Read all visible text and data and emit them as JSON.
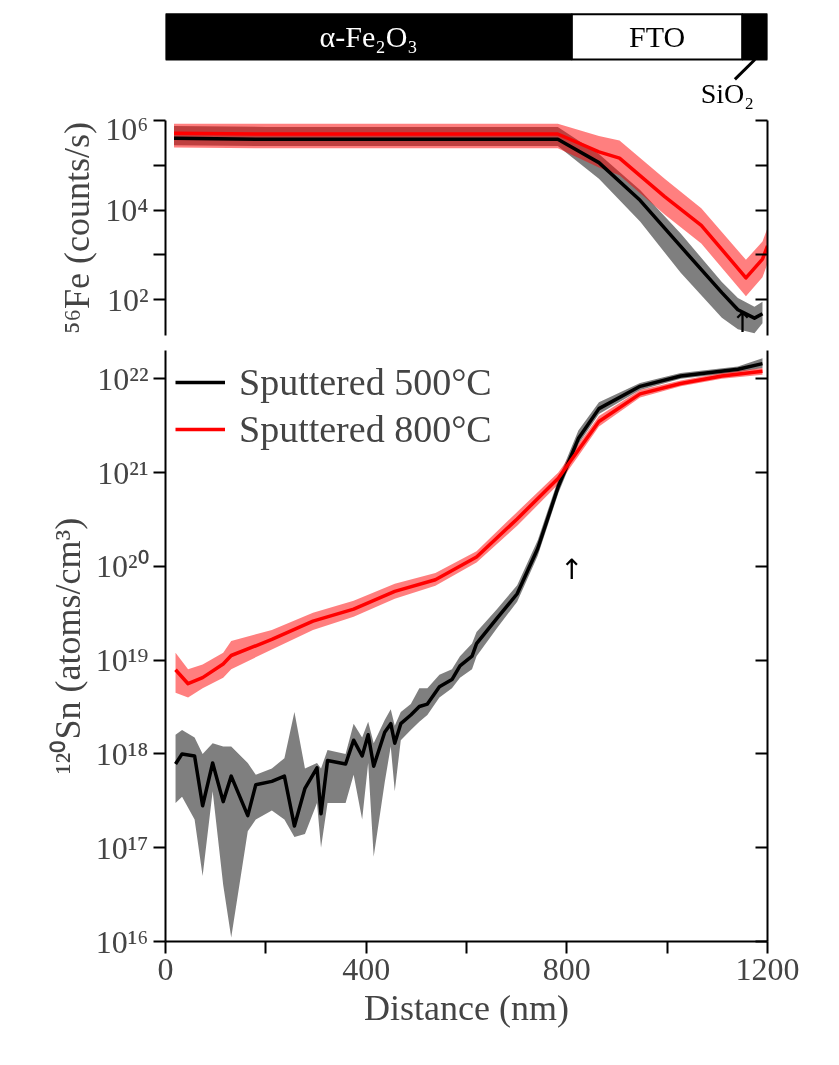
{
  "chart_data": [
    {
      "type": "bar",
      "orientation": "horizontal",
      "stacked": true,
      "categories": [
        null
      ],
      "xlim": [
        0,
        1200
      ],
      "tick_labels": false,
      "series": [
        {
          "name": "α-Fe₂O₃",
          "color": "#000000",
          "values": [
            810
          ]
        },
        {
          "name": "FTO",
          "color": "#ffffff",
          "values": [
            340
          ]
        },
        {
          "name": "SiO₂",
          "color": "#000000",
          "values": [
            50
          ]
        }
      ]
    },
    {
      "type": "line",
      "ylabel": "⁵⁶Fe (counts/s)",
      "log": "y",
      "xlim": [
        0,
        1200
      ],
      "ylim": [
        16,
        1000000
      ],
      "yticks": [
        {
          "value": 1000000,
          "label": "10⁶"
        },
        {
          "value": 100000,
          "label": null
        },
        {
          "value": 10000,
          "label": "10⁴"
        },
        {
          "value": 1000,
          "label": null
        },
        {
          "value": 100,
          "label": "10²"
        }
      ],
      "tick_labels": "y",
      "legend": false,
      "annotations": [
        "↑"
      ],
      "series": [
        {
          "color": "#000000",
          "x": [
            17,
            200,
            400,
            600,
            782,
            864,
            946,
            1027,
            1109,
            1141,
            1174,
            1190
          ],
          "values": [
            400000,
            380000,
            380000,
            380000,
            380000,
            115000,
            16600,
            1550,
            145,
            60,
            39,
            49
          ],
          "lower": [
            280000,
            270000,
            270000,
            270000,
            270000,
            50000,
            5600,
            400,
            40,
            22,
            18,
            30
          ],
          "upper": [
            750000,
            720000,
            720000,
            720000,
            720000,
            180000,
            28000,
            3000,
            250,
            110,
            70,
            90
          ]
        },
        {
          "color": "#ff0000",
          "x": [
            17,
            200,
            400,
            600,
            782,
            864,
            905,
            995,
            1068,
            1157,
            1190,
            1200
          ],
          "values": [
            520000,
            500000,
            500000,
            500000,
            500000,
            200000,
            145000,
            20000,
            4600,
            310,
            810,
            1600
          ],
          "lower": [
            250000,
            240000,
            240000,
            240000,
            240000,
            90000,
            60000,
            8000,
            1800,
            120,
            320,
            650
          ],
          "upper": [
            850000,
            850000,
            850000,
            850000,
            850000,
            450000,
            360000,
            50000,
            11000,
            780,
            2000,
            4000
          ]
        }
      ]
    },
    {
      "type": "line",
      "xlabel": "Distance (nm)",
      "ylabel": "¹²⁰Sn (atoms/cm³)",
      "log": "y",
      "xlim": [
        0,
        1200
      ],
      "ylim": [
        1e+16,
        2e+22
      ],
      "xticks": [
        0,
        {
          "value": 200,
          "label": null
        },
        400,
        {
          "value": 600,
          "label": null
        },
        800,
        {
          "value": 1000,
          "label": null
        },
        1200
      ],
      "yticks": [
        {
          "value": 1e+16,
          "label": "10¹⁶"
        },
        {
          "value": 1e+17,
          "label": "10¹⁷"
        },
        {
          "value": 1e+18,
          "label": "10¹⁸"
        },
        {
          "value": 1e+19,
          "label": "10¹⁹"
        },
        {
          "value": 1e+20,
          "label": "10²⁰"
        },
        {
          "value": 1e+21,
          "label": "10²¹"
        },
        {
          "value": 1e+22,
          "label": "10²²"
        }
      ],
      "legend": "top left",
      "annotations": [
        "↑"
      ],
      "series": [
        {
          "name": "Sputtered 500°C",
          "color": "#000000",
          "x": [
            20,
            33,
            58,
            74,
            94,
            115,
            131,
            164,
            180,
            212,
            237,
            257,
            278,
            302,
            310,
            323,
            359,
            375,
            392,
            404,
            415,
            437,
            449,
            457,
            469,
            489,
            506,
            522,
            546,
            571,
            587,
            611,
            620,
            661,
            701,
            742,
            783,
            823,
            864,
            946,
            1027,
            1141,
            1190
          ],
          "values": [
            7.8e+17,
            1e+18,
            9.5e+17,
            2.8e+17,
            8e+17,
            3.1e+17,
            5.8e+17,
            2.2e+17,
            4.7e+17,
            5.1e+17,
            5.8e+17,
            1.7e+17,
            4.3e+17,
            7.1e+17,
            2.3e+17,
            8.5e+17,
            7.8e+17,
            1.4e+18,
            9.5e+17,
            1.6e+18,
            7.4e+17,
            1.7e+18,
            2.1e+18,
            1.3e+18,
            2.1e+18,
            2.6e+18,
            3.2e+18,
            3.4e+18,
            5.2e+18,
            6.2e+18,
            8.7e+18,
            1.1e+19,
            1.5e+19,
            2.8e+19,
            5.1e+19,
            1.55e+20,
            7.1e+20,
            2.3e+21,
            4.8e+21,
            8.3e+21,
            1.07e+22,
            1.26e+22,
            1.45e+22
          ],
          "lower": [
            3e+17,
            3.5e+17,
            2e+17,
            5e+16,
            4e+17,
            4e+16,
            1.1e+16,
            1.5e+17,
            2e+17,
            2.5e+17,
            2e+17,
            1.3e+17,
            1.4e+17,
            3e+17,
            1e+17,
            3e+17,
            3e+17,
            6e+17,
            2e+17,
            8e+17,
            8e+16,
            5e+17,
            1.2e+18,
            4e+17,
            1.4e+18,
            1.8e+18,
            2.2e+18,
            2.6e+18,
            4e+18,
            5e+18,
            6.5e+18,
            8e+18,
            1.1e+19,
            2.2e+19,
            4.2e+19,
            1.3e+20,
            6e+20,
            2e+21,
            4.2e+21,
            7.6e+21,
            1e+22,
            1.18e+22,
            1.3e+22
          ],
          "upper": [
            1.6e+18,
            1.8e+18,
            1.5e+18,
            1e+18,
            1.3e+18,
            1.2e+18,
            1.2e+18,
            8e+17,
            6e+17,
            7e+17,
            9e+17,
            2.8e+18,
            7e+17,
            8e+17,
            7e+17,
            1.1e+18,
            1e+18,
            2.1e+18,
            1.5e+18,
            2.2e+18,
            1.3e+18,
            2.3e+18,
            3e+18,
            2e+18,
            2.8e+18,
            3.4e+18,
            5e+18,
            5e+18,
            7e+18,
            8e+18,
            1.1e+19,
            1.5e+19,
            2e+19,
            3.5e+19,
            6.3e+19,
            1.9e+20,
            8.5e+20,
            2.8e+21,
            5.6e+21,
            9e+21,
            1.15e+22,
            1.35e+22,
            1.65e+22
          ]
        },
        {
          "name": "Sputtered 800°C",
          "color": "#ff0000",
          "x": [
            20,
            45,
            74,
            115,
            131,
            212,
            294,
            375,
            457,
            538,
            620,
            701,
            783,
            823,
            864,
            946,
            1027,
            1109,
            1190
          ],
          "values": [
            7.9e+18,
            5.6e+18,
            6.5e+18,
            9.1e+18,
            1.12e+19,
            1.66e+19,
            2.6e+19,
            3.5e+19,
            5.4e+19,
            7.2e+19,
            1.26e+20,
            3.2e+20,
            8.7e+20,
            1.74e+21,
            3.5e+21,
            6.9e+21,
            8.9e+21,
            1.07e+22,
            1.2e+22
          ],
          "lower": [
            4.5e+18,
            4e+18,
            5e+18,
            6.5e+18,
            8e+18,
            1.3e+19,
            2.1e+19,
            2.9e+19,
            4.5e+19,
            6.2e+19,
            1.1e+20,
            2.7e+20,
            7.5e+20,
            1.5e+21,
            3.1e+21,
            6.3e+21,
            8.3e+21,
            1e+22,
            1.1e+22
          ],
          "upper": [
            1.2e+19,
            8e+18,
            9e+18,
            1.2e+19,
            1.6e+19,
            2.1e+19,
            3.2e+19,
            4.3e+19,
            6.5e+19,
            8.5e+19,
            1.45e+20,
            3.8e+20,
            1e+21,
            2e+21,
            4e+21,
            7.6e+21,
            9.6e+21,
            1.15e+22,
            1.3e+22
          ]
        }
      ]
    }
  ]
}
